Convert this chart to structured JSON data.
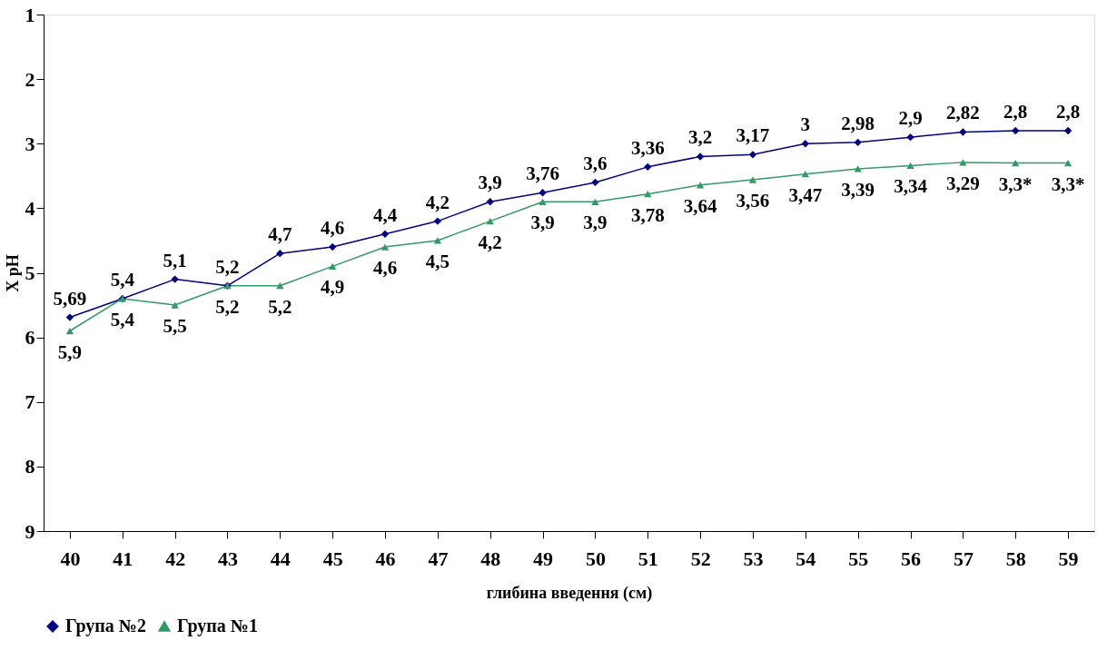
{
  "chart_data": {
    "type": "line",
    "xlabel": "глибина введення (см)",
    "ylabel": "X pH",
    "categories": [
      "40",
      "41",
      "42",
      "43",
      "44",
      "45",
      "46",
      "47",
      "48",
      "49",
      "50",
      "51",
      "52",
      "53",
      "54",
      "55",
      "56",
      "57",
      "58",
      "59"
    ],
    "ylim": [
      9,
      1
    ],
    "yticks": [
      1,
      2,
      3,
      4,
      5,
      6,
      7,
      8,
      9
    ],
    "grid": false,
    "legend": "bottom",
    "series": [
      {
        "name": "Група №2",
        "color": "#000080",
        "marker": "diamond",
        "values": [
          5.69,
          5.4,
          5.1,
          5.2,
          4.7,
          4.6,
          4.4,
          4.2,
          3.9,
          3.76,
          3.6,
          3.36,
          3.2,
          3.17,
          3.0,
          2.98,
          2.9,
          2.82,
          2.8,
          2.8
        ],
        "value_labels": [
          "5,69",
          "5,4",
          "5,1",
          "5,2",
          "4,7",
          "4,6",
          "4,4",
          "4,2",
          "3,9",
          "3,76",
          "3,6",
          "3,36",
          "3,2",
          "3,17",
          "3",
          "2,98",
          "2,9",
          "2,82",
          "2,8",
          "2,8"
        ]
      },
      {
        "name": "Група №1",
        "color": "#339966",
        "marker": "triangle",
        "values": [
          5.9,
          5.4,
          5.5,
          5.2,
          5.2,
          4.9,
          4.6,
          4.5,
          4.2,
          3.9,
          3.9,
          3.78,
          3.64,
          3.56,
          3.47,
          3.39,
          3.34,
          3.29,
          3.3,
          3.3
        ],
        "value_labels": [
          "5,9",
          "5,4",
          "5,5",
          "5,2",
          "5,2",
          "4,9",
          "4,6",
          "4,5",
          "4,2",
          "3,9",
          "3,9",
          "3,78",
          "3,64",
          "3,56",
          "3,47",
          "3,39",
          "3,34",
          "3,29",
          "3,3*",
          "3,3*"
        ]
      }
    ]
  }
}
